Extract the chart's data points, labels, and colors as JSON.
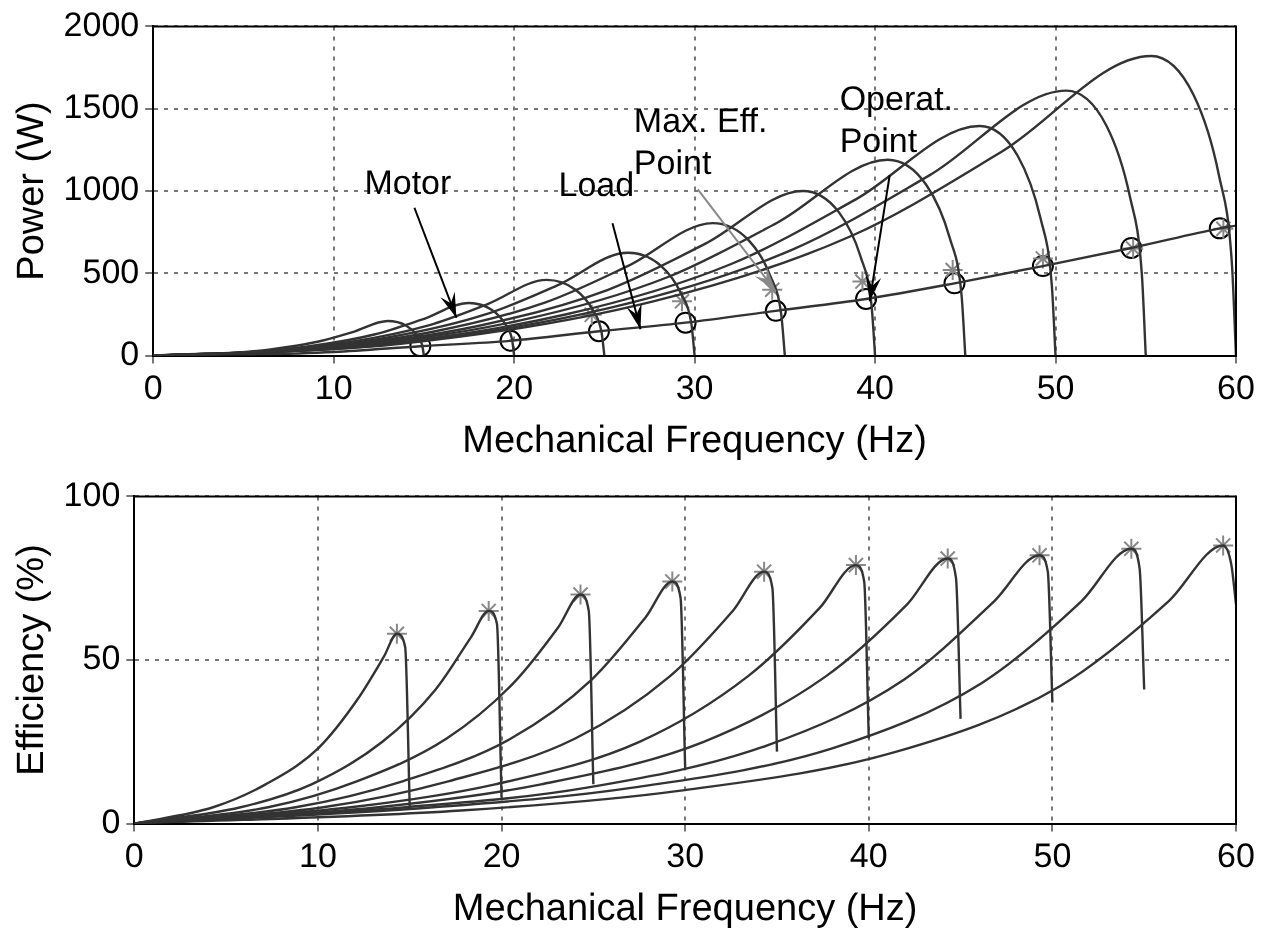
{
  "chart_data": [
    {
      "type": "line",
      "xlabel": "Mechanical Frequency (Hz)",
      "ylabel": "Power (W)",
      "xlim": [
        0,
        60
      ],
      "ylim": [
        0,
        2000
      ],
      "xticks": [
        0,
        10,
        20,
        30,
        40,
        50,
        60
      ],
      "yticks": [
        0,
        500,
        1000,
        1500,
        2000
      ],
      "grid": true,
      "marker": "none",
      "line_style": "solid",
      "annotations": [
        {
          "text": "Motor",
          "x": 16.8,
          "y": 230
        },
        {
          "text": "Load",
          "x": 27,
          "y": 160
        },
        {
          "text": "Max. Eff. Point",
          "x": 34.5,
          "y": 390
        },
        {
          "text": "Operat. Point",
          "x": 39.7,
          "y": 330
        }
      ],
      "series": [
        {
          "color": "#333333",
          "x": [
            0,
            3.25,
            6.5,
            9.1,
            11.05,
            13,
            14,
            14.6,
            14.9,
            15
          ],
          "values": [
            0,
            8,
            38,
            84,
            143,
            210,
            183,
            126,
            65,
            0
          ]
        },
        {
          "color": "#333333",
          "x": [
            0,
            4.38,
            8.75,
            12.25,
            14.88,
            17.5,
            18.75,
            19.5,
            19.88,
            20
          ],
          "values": [
            0,
            13,
            58,
            128,
            218,
            320,
            278,
            192,
            99,
            0
          ]
        },
        {
          "color": "#333333",
          "x": [
            0,
            5.45,
            10.9,
            15.26,
            18.53,
            21.8,
            23.4,
            24.36,
            24.84,
            25
          ],
          "values": [
            0,
            18,
            83,
            184,
            313,
            460,
            400,
            276,
            143,
            0
          ]
        },
        {
          "color": "#333333",
          "x": [
            0,
            6.58,
            13.15,
            18.41,
            22.36,
            26.3,
            28.15,
            29.26,
            29.82,
            30
          ],
          "values": [
            0,
            25,
            113,
            250,
            425,
            625,
            544,
            375,
            194,
            0
          ]
        },
        {
          "color": "#333333",
          "x": [
            0,
            7.75,
            15.5,
            21.7,
            26.35,
            31,
            33,
            34.2,
            34.8,
            35
          ],
          "values": [
            0,
            32,
            145,
            322,
            547,
            805,
            700,
            483,
            250,
            0
          ]
        },
        {
          "color": "#333333",
          "x": [
            0,
            9,
            18,
            25.2,
            30.6,
            36,
            38,
            39.2,
            39.8,
            40
          ],
          "values": [
            0,
            40,
            180,
            400,
            680,
            1000,
            870,
            600,
            310,
            0
          ]
        },
        {
          "color": "#333333",
          "x": [
            0,
            10.18,
            20.35,
            28.49,
            34.6,
            40.7,
            42.85,
            44.14,
            44.79,
            45
          ],
          "values": [
            0,
            48,
            214,
            476,
            809,
            1190,
            1035,
            714,
            369,
            0
          ]
        },
        {
          "color": "#333333",
          "x": [
            0,
            11.45,
            22.9,
            32.06,
            38.93,
            45.8,
            47.9,
            49.16,
            49.79,
            50
          ],
          "values": [
            0,
            56,
            251,
            558,
            949,
            1395,
            1214,
            837,
            432,
            0
          ]
        },
        {
          "color": "#333333",
          "x": [
            0,
            12.65,
            25.3,
            35.42,
            43.01,
            50.6,
            52.8,
            54.12,
            54.78,
            55
          ],
          "values": [
            0,
            64,
            290,
            644,
            1095,
            1610,
            1401,
            966,
            499,
            0
          ]
        },
        {
          "color": "#333333",
          "x": [
            0,
            13.83,
            27.65,
            38.71,
            47.01,
            55.3,
            57.65,
            59.06,
            59.77,
            60
          ],
          "values": [
            0,
            73,
            328,
            728,
            1238,
            1820,
            1583,
            1092,
            564,
            0
          ]
        },
        {
          "color": "#333333",
          "x": [
            0,
            5,
            10,
            14.8,
            19.8,
            24.7,
            29.5,
            34.5,
            39.5,
            44.4,
            49.3,
            54.2,
            59.1,
            60
          ],
          "values": [
            0,
            5,
            22,
            57,
            90,
            148,
            200,
            272,
            344,
            439,
            544,
            654,
            773,
            790
          ]
        },
        {
          "type": "scatter",
          "marker": "cross",
          "color": "#888888",
          "x": [
            24.3,
            29.3,
            34.3,
            39.3,
            44.3,
            49.3,
            54.3,
            59.3
          ],
          "values": [
            248,
            330,
            400,
            450,
            520,
            590,
            650,
            770
          ]
        },
        {
          "type": "scatter",
          "marker": "circle",
          "color": "#000000",
          "x": [
            14.8,
            19.8,
            24.7,
            29.5,
            34.5,
            39.5,
            44.4,
            49.3,
            54.2,
            59.1
          ],
          "values": [
            57,
            90,
            148,
            200,
            272,
            344,
            439,
            544,
            654,
            773
          ]
        }
      ]
    },
    {
      "type": "line",
      "xlabel": "Mechanical Frequency (Hz)",
      "ylabel": "Efficiency (%)",
      "xlim": [
        0,
        60
      ],
      "ylim": [
        0,
        100
      ],
      "xticks": [
        0,
        10,
        20,
        30,
        40,
        50,
        60
      ],
      "yticks": [
        0,
        50,
        100
      ],
      "grid": true,
      "marker": "none",
      "line_style": "solid",
      "series": [
        {
          "color": "#333333",
          "x": [
            0,
            4.29,
            7.15,
            10.01,
            12.16,
            13.59,
            14.3,
            14.75,
            15
          ],
          "values": [
            0,
            5,
            12,
            23,
            38,
            51,
            58,
            54,
            5
          ]
        },
        {
          "color": "#333333",
          "x": [
            0,
            5.79,
            9.65,
            13.51,
            16.41,
            18.34,
            19.3,
            19.75,
            20
          ],
          "values": [
            0,
            5,
            12,
            25,
            41,
            57,
            65,
            61,
            8
          ]
        },
        {
          "color": "#333333",
          "x": [
            0,
            7.29,
            12.15,
            17.01,
            20.66,
            23.09,
            24.3,
            24.75,
            25
          ],
          "values": [
            0,
            5,
            13,
            26,
            43,
            60,
            70,
            65,
            12
          ]
        },
        {
          "color": "#333333",
          "x": [
            0,
            8.79,
            14.65,
            20.51,
            24.91,
            27.84,
            29.3,
            29.75,
            30
          ],
          "values": [
            0,
            5,
            13,
            26,
            44,
            63,
            74,
            69,
            17
          ]
        },
        {
          "color": "#333333",
          "x": [
            0,
            10.29,
            17.15,
            24.01,
            29.16,
            32.59,
            34.3,
            34.75,
            35
          ],
          "values": [
            0,
            5,
            13,
            26,
            45,
            65,
            77,
            72,
            22
          ]
        },
        {
          "color": "#333333",
          "x": [
            0,
            11.79,
            19.65,
            27.51,
            33.41,
            37.34,
            39.3,
            39.75,
            40
          ],
          "values": [
            0,
            5,
            12,
            25,
            45,
            66,
            79,
            74,
            26
          ]
        },
        {
          "color": "#333333",
          "x": [
            0,
            13.29,
            22.15,
            31.01,
            37.66,
            42.09,
            44.3,
            44.75,
            45
          ],
          "values": [
            0,
            5,
            12,
            25,
            45,
            67,
            81,
            75,
            32
          ]
        },
        {
          "color": "#333333",
          "x": [
            0,
            14.79,
            24.65,
            34.51,
            41.91,
            46.84,
            49.3,
            49.75,
            50
          ],
          "values": [
            0,
            5,
            11,
            24,
            44,
            68,
            82,
            77,
            37
          ]
        },
        {
          "color": "#333333",
          "x": [
            0,
            16.29,
            27.15,
            38.01,
            46.16,
            51.59,
            54.3,
            54.75,
            55
          ],
          "values": [
            0,
            5,
            11,
            23,
            43,
            68,
            84,
            78,
            41
          ]
        },
        {
          "color": "#333333",
          "x": [
            0,
            17.79,
            29.65,
            41.51,
            50.41,
            56.34,
            59.3,
            59.75,
            60
          ],
          "values": [
            0,
            4,
            10,
            22,
            42,
            68,
            85,
            79,
            67
          ]
        },
        {
          "type": "scatter",
          "marker": "cross",
          "color": "#888888",
          "x": [
            14.3,
            19.3,
            24.3,
            29.3,
            34.3,
            39.3,
            44.3,
            49.3,
            54.3,
            59.3
          ],
          "values": [
            58,
            65,
            70,
            74,
            77,
            79,
            81,
            82,
            84,
            85
          ]
        }
      ]
    }
  ]
}
